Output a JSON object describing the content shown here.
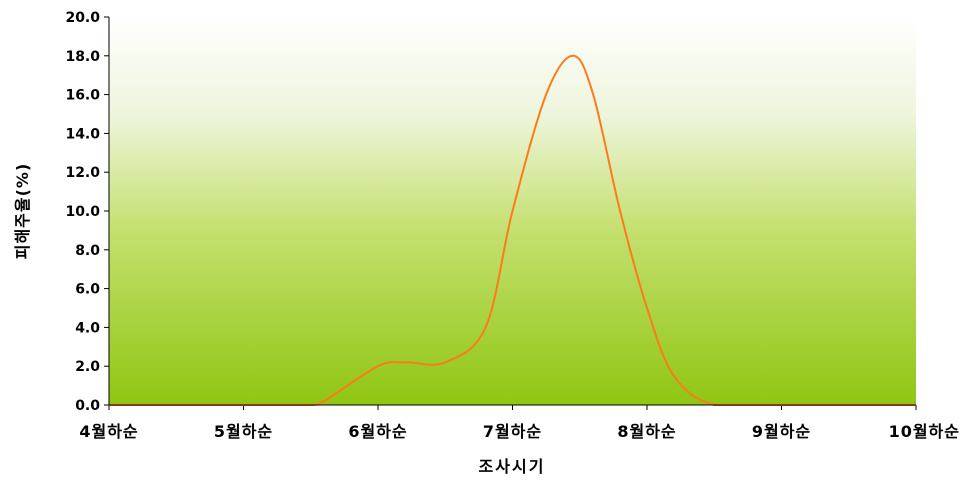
{
  "chart_data": {
    "type": "area",
    "title": "",
    "xlabel": "조사시기",
    "ylabel": "피해주율(%)",
    "ylim": [
      0,
      20
    ],
    "y_ticks": [
      "0.0",
      "2.0",
      "4.0",
      "6.0",
      "8.0",
      "10.0",
      "12.0",
      "14.0",
      "16.0",
      "18.0",
      "20.0"
    ],
    "categories": [
      "4월하순",
      "5월하순",
      "6월하순",
      "7월하순",
      "8월하순",
      "9월하순",
      "10월하순"
    ],
    "grid": false,
    "legend": "none",
    "colors": {
      "line": "#ff7a1a",
      "background_top": "#ffffff",
      "background_bottom": "#92c814",
      "axis": "#000000"
    },
    "series": [
      {
        "x": [
          0,
          0.5,
          1.0,
          1.5,
          1.6,
          2.0,
          2.2,
          2.5,
          2.8,
          3.0,
          3.25,
          3.45,
          3.6,
          3.8,
          4.0,
          4.2,
          4.5,
          5.0,
          5.5,
          6.0
        ],
        "values": [
          0,
          0,
          0,
          0,
          0.2,
          2.0,
          2.2,
          2.2,
          4.0,
          10.0,
          16.0,
          18.0,
          16.0,
          10.0,
          5.0,
          1.5,
          0,
          0,
          0,
          0
        ]
      }
    ]
  }
}
